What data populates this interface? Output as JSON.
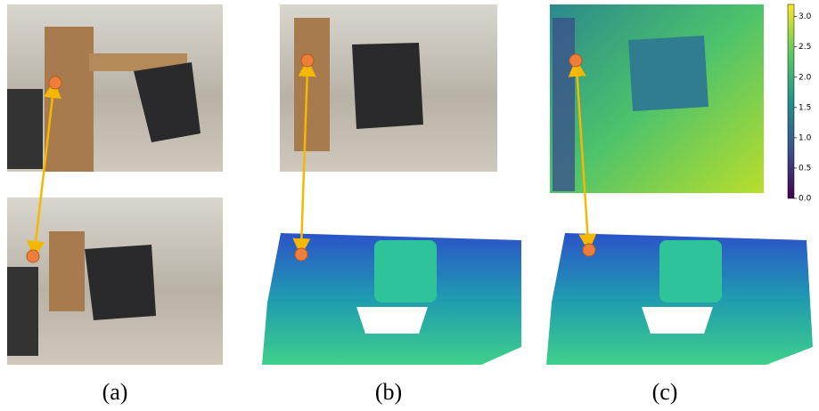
{
  "panels": [
    {
      "label": "(a)"
    },
    {
      "label": "(b)"
    },
    {
      "label": "(c)"
    }
  ],
  "colorbar": {
    "lim": [
      0,
      3.2
    ],
    "ticks": [
      {
        "value": 0,
        "label": "0.0"
      },
      0.5,
      {
        "value": 1,
        "label": "1.0"
      },
      1.5,
      {
        "value": 2,
        "label": "2.0"
      },
      2.5,
      {
        "value": 3,
        "label": "3.0"
      }
    ]
  }
}
